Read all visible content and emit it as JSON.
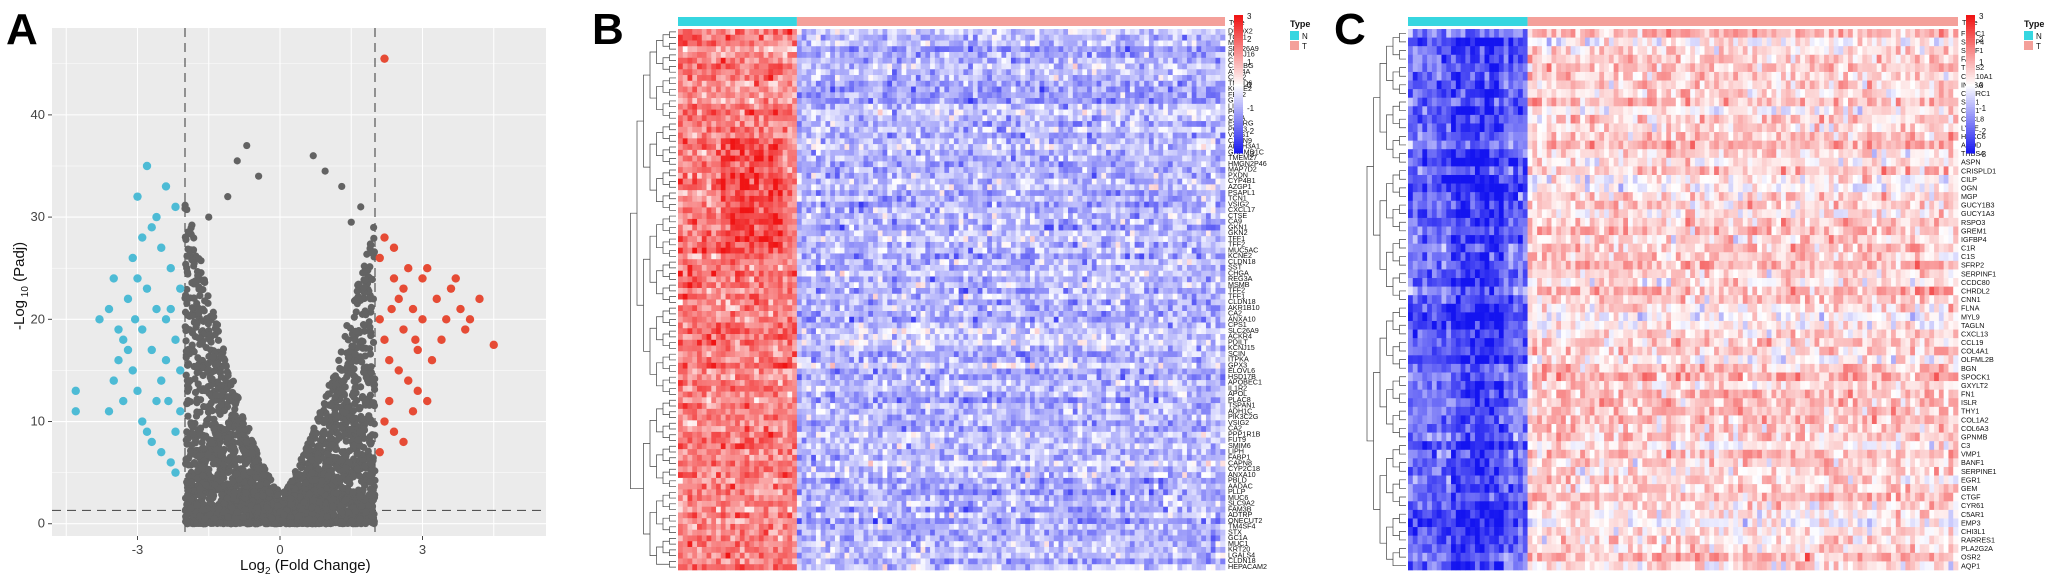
{
  "panel_labels": [
    "A",
    "B",
    "C"
  ],
  "colors": {
    "down": "#4dbbd5",
    "up": "#e64b35",
    "ns": "#636363",
    "group_N": "#36d6e0",
    "group_T": "#f4a09a",
    "heat_low": "#1414f0",
    "heat_mid": "#ffffff",
    "heat_high": "#f01414",
    "panel_bg": "#ebebeb"
  },
  "chart_data": [
    {
      "type": "scatter",
      "panel": "A",
      "xlabel_main": "Log",
      "xlabel_sub": "2",
      "xlabel_rest": " (Fold Change)",
      "ylabel_main": "-Log",
      "ylabel_sub": " 10",
      "ylabel_rest": " (Padj)",
      "xlim": [
        -4.8,
        5.6
      ],
      "ylim": [
        -1.2,
        48.5
      ],
      "xticks": [
        -3,
        0,
        3
      ],
      "yticks": [
        0,
        10,
        20,
        30,
        40
      ],
      "thresholds": {
        "log2fc": [
          -2,
          2
        ],
        "padj": 1.3
      },
      "series": [
        {
          "group": "down",
          "points": [
            [
              -4.3,
              13
            ],
            [
              -4.3,
              11
            ],
            [
              -3.6,
              11
            ],
            [
              -3.5,
              14
            ],
            [
              -3.4,
              16
            ],
            [
              -3.3,
              18
            ],
            [
              -3.2,
              17
            ],
            [
              -3.1,
              15
            ],
            [
              -3.0,
              13
            ],
            [
              -2.9,
              10
            ],
            [
              -2.8,
              9
            ],
            [
              -2.7,
              8
            ],
            [
              -2.6,
              12
            ],
            [
              -2.5,
              14
            ],
            [
              -2.4,
              16
            ],
            [
              -2.3,
              6
            ],
            [
              -2.2,
              9
            ],
            [
              -2.1,
              11
            ],
            [
              -3.6,
              21
            ],
            [
              -3.4,
              19
            ],
            [
              -3.2,
              22
            ],
            [
              -3.0,
              24
            ],
            [
              -2.8,
              23
            ],
            [
              -2.6,
              21
            ],
            [
              -2.4,
              20
            ],
            [
              -2.2,
              18
            ],
            [
              -2.1,
              15
            ],
            [
              -3.5,
              24
            ],
            [
              -3.1,
              26
            ],
            [
              -2.9,
              28
            ],
            [
              -2.7,
              29
            ],
            [
              -2.5,
              27
            ],
            [
              -2.3,
              25
            ],
            [
              -3.0,
              32
            ],
            [
              -2.8,
              35
            ],
            [
              -2.4,
              33
            ],
            [
              -2.2,
              31
            ],
            [
              -2.6,
              30
            ],
            [
              -2.3,
              21
            ],
            [
              -2.9,
              19
            ],
            [
              -3.3,
              12
            ],
            [
              -2.5,
              7
            ],
            [
              -2.2,
              5
            ],
            [
              -3.8,
              20
            ],
            [
              -2.1,
              23
            ],
            [
              -2.7,
              17
            ],
            [
              -2.35,
              12
            ],
            [
              -3.05,
              20
            ]
          ]
        },
        {
          "group": "up",
          "points": [
            [
              2.2,
              45.5
            ],
            [
              2.1,
              26
            ],
            [
              2.2,
              28
            ],
            [
              2.4,
              24
            ],
            [
              2.5,
              22
            ],
            [
              2.6,
              19
            ],
            [
              2.8,
              21
            ],
            [
              3.0,
              20
            ],
            [
              2.3,
              16
            ],
            [
              2.5,
              15
            ],
            [
              2.7,
              14
            ],
            [
              2.9,
              13
            ],
            [
              3.1,
              12
            ],
            [
              2.2,
              10
            ],
            [
              2.4,
              9
            ],
            [
              2.6,
              8
            ],
            [
              2.1,
              7
            ],
            [
              2.3,
              12
            ],
            [
              2.8,
              11
            ],
            [
              3.3,
              22
            ],
            [
              3.5,
              20
            ],
            [
              3.4,
              18
            ],
            [
              3.2,
              16
            ],
            [
              3.0,
              24
            ],
            [
              2.7,
              25
            ],
            [
              2.4,
              27
            ],
            [
              3.6,
              23
            ],
            [
              3.8,
              21
            ],
            [
              4.0,
              20
            ],
            [
              3.9,
              19
            ],
            [
              3.7,
              24
            ],
            [
              4.2,
              22
            ],
            [
              4.5,
              17.5
            ],
            [
              2.9,
              17
            ],
            [
              2.2,
              18
            ],
            [
              2.1,
              20
            ],
            [
              2.6,
              23
            ],
            [
              3.1,
              25
            ],
            [
              2.35,
              21
            ],
            [
              2.85,
              18
            ]
          ]
        }
      ]
    },
    {
      "type": "heatmap",
      "panel": "B",
      "legend_title": "Type",
      "groups": [
        "N",
        "T"
      ],
      "scale_ticks": [
        3,
        2,
        1,
        0,
        -1,
        -2,
        -3
      ],
      "n_normal": 25,
      "n_tumor": 90,
      "up_block_rows": [
        0,
        52
      ],
      "row_labels": [
        "DUOX2",
        "TCN1",
        "MAL",
        "SLC26A9",
        "KCNJ16",
        "CIF",
        "CSRBG",
        "ATP4A",
        "CPA2",
        "TMED6",
        "KCNE2",
        "FBP2",
        "GIF",
        "LIPF",
        "PGC",
        "CHIA",
        "ESRRG",
        "PGA3",
        "VSIG1",
        "CAPN9",
        "ALDH3A1",
        "GRAMD1C",
        "TMEM27",
        "HMGN2P46",
        "MAP7D2",
        "PXDN",
        "CYP4B1",
        "AZGP1",
        "PSAPL1",
        "TCN1",
        "VSIG2",
        "CXCL17",
        "CTSE",
        "CA9",
        "GKN1",
        "GKN2",
        "TFF1",
        "TFF2",
        "MUC5AC",
        "KCNE2",
        "CLDN18",
        "SST",
        "CHGA",
        "REG3A",
        "MSMB",
        "TFF2",
        "TFF1",
        "CLDN18",
        "AKR1B10",
        "CA2",
        "ANXA10",
        "CPS1",
        "SLC26A9",
        "ACKR4",
        "PDILT",
        "KCNJ15",
        "SCIN",
        "ITPKA",
        "GPX3",
        "ELOVL6",
        "HSD17B",
        "APOBEC1",
        "IL1R2",
        "APOL",
        "PLAC8",
        "TSPAN1",
        "ADH1C",
        "PIK3C2G",
        "VSIG2",
        "CA2",
        "PPP1R1B",
        "FUT9",
        "SMIM6",
        "LIPH",
        "FABP1",
        "CAPN8",
        "CYP2C18",
        "ANXA10",
        "PBLD",
        "AADAC",
        "PLLP",
        "MUC6",
        "SLC9A2",
        "FAM3B",
        "ADTRP",
        "ONECUT2",
        "TM4SF4",
        "STX",
        "GC1A",
        "MUC1",
        "KRT20",
        "LGALS4",
        "CLDN18",
        "HEPACAM2"
      ]
    },
    {
      "type": "heatmap",
      "panel": "C",
      "legend_title": "Type",
      "groups": [
        "N",
        "T"
      ],
      "scale_ticks": [
        3,
        2,
        1,
        0,
        -1,
        -2,
        -3
      ],
      "n_normal": 25,
      "n_tumor": 90,
      "up_block_rows": [
        0,
        66
      ],
      "row_labels": [
        "FNDC1",
        "SFRP4",
        "SULF1",
        "FAP",
        "THBS2",
        "COL10A1",
        "INHBA",
        "CTHRC1",
        "SPP1",
        "CST1",
        "CXCL8",
        "LYVE",
        "HOXC6",
        "APOD",
        "THBS4",
        "ASPN",
        "CRISPLD1",
        "CILP",
        "OGN",
        "MGP",
        "GUCY1B3",
        "GUCY1A3",
        "RSPO3",
        "GREM1",
        "IGFBP4",
        "C1R",
        "C1S",
        "SFRP2",
        "SERPINF1",
        "CCDC80",
        "CHRDL2",
        "CNN1",
        "FLNA",
        "MYL9",
        "TAGLN",
        "CXCL13",
        "CCL19",
        "COL4A1",
        "OLFML2B",
        "BGN",
        "SPOCK1",
        "GXYLT2",
        "FN1",
        "ISLR",
        "THY1",
        "COL1A2",
        "COL6A3",
        "GPNMB",
        "C3",
        "VMP1",
        "BANF1",
        "SERPINE1",
        "EGR1",
        "GEM",
        "CTGF",
        "CYR61",
        "C5AR1",
        "EMP3",
        "CHI3L1",
        "RARRES1",
        "PLA2G2A",
        "OSR2",
        "AQP1"
      ]
    }
  ]
}
